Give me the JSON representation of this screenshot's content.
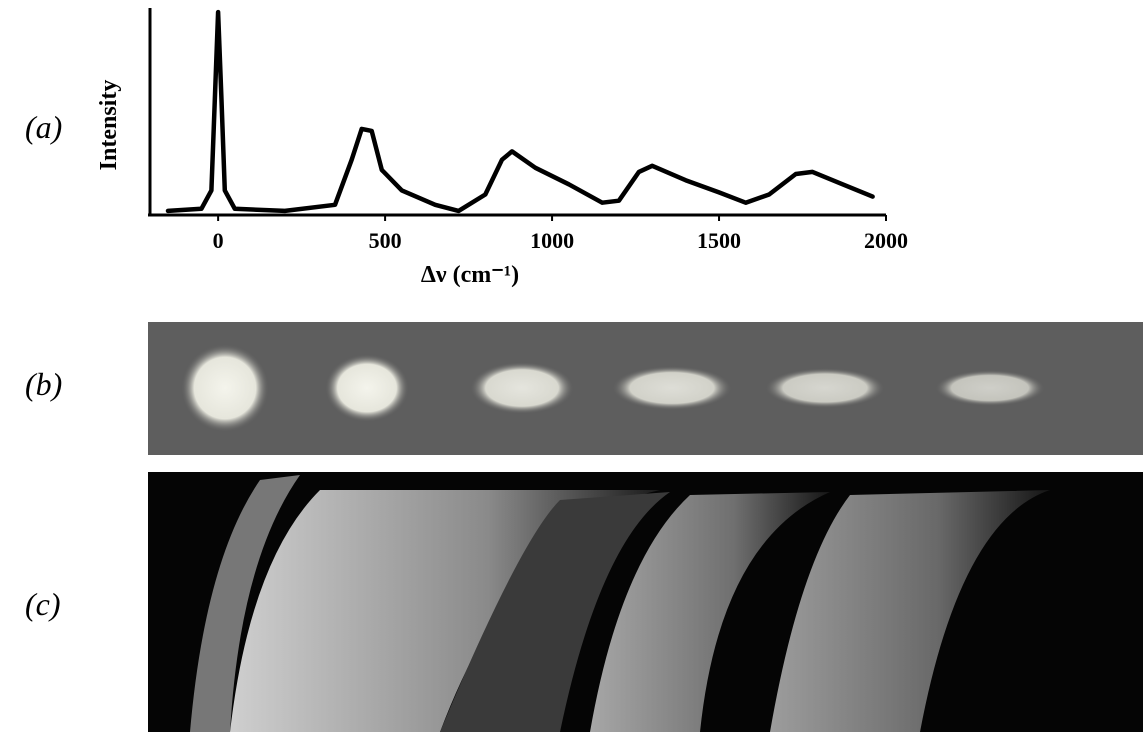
{
  "panel_labels": [
    "(a)",
    "(b)",
    "(c)"
  ],
  "chart_data": {
    "type": "line",
    "xlabel": "Δν (cm⁻¹)",
    "ylabel": "Intensity",
    "x": [
      -150,
      -50,
      -20,
      -10,
      0,
      10,
      20,
      50,
      200,
      350,
      400,
      430,
      460,
      490,
      550,
      650,
      720,
      800,
      850,
      880,
      950,
      1050,
      1150,
      1200,
      1260,
      1300,
      1400,
      1500,
      1580,
      1650,
      1730,
      1780,
      1870,
      1960
    ],
    "values": [
      2,
      3,
      12,
      56,
      99,
      56,
      12,
      3,
      2,
      5,
      27,
      42,
      41,
      22,
      12,
      5,
      2,
      10,
      27,
      31,
      23,
      15,
      6,
      7,
      21,
      24,
      17,
      11,
      6,
      10,
      20,
      21,
      15,
      9
    ],
    "color": "#000000",
    "xlim": [
      -210,
      2000
    ],
    "ylim": [
      0,
      100
    ],
    "xticks": [
      0,
      500,
      1000,
      1500,
      2000
    ]
  }
}
